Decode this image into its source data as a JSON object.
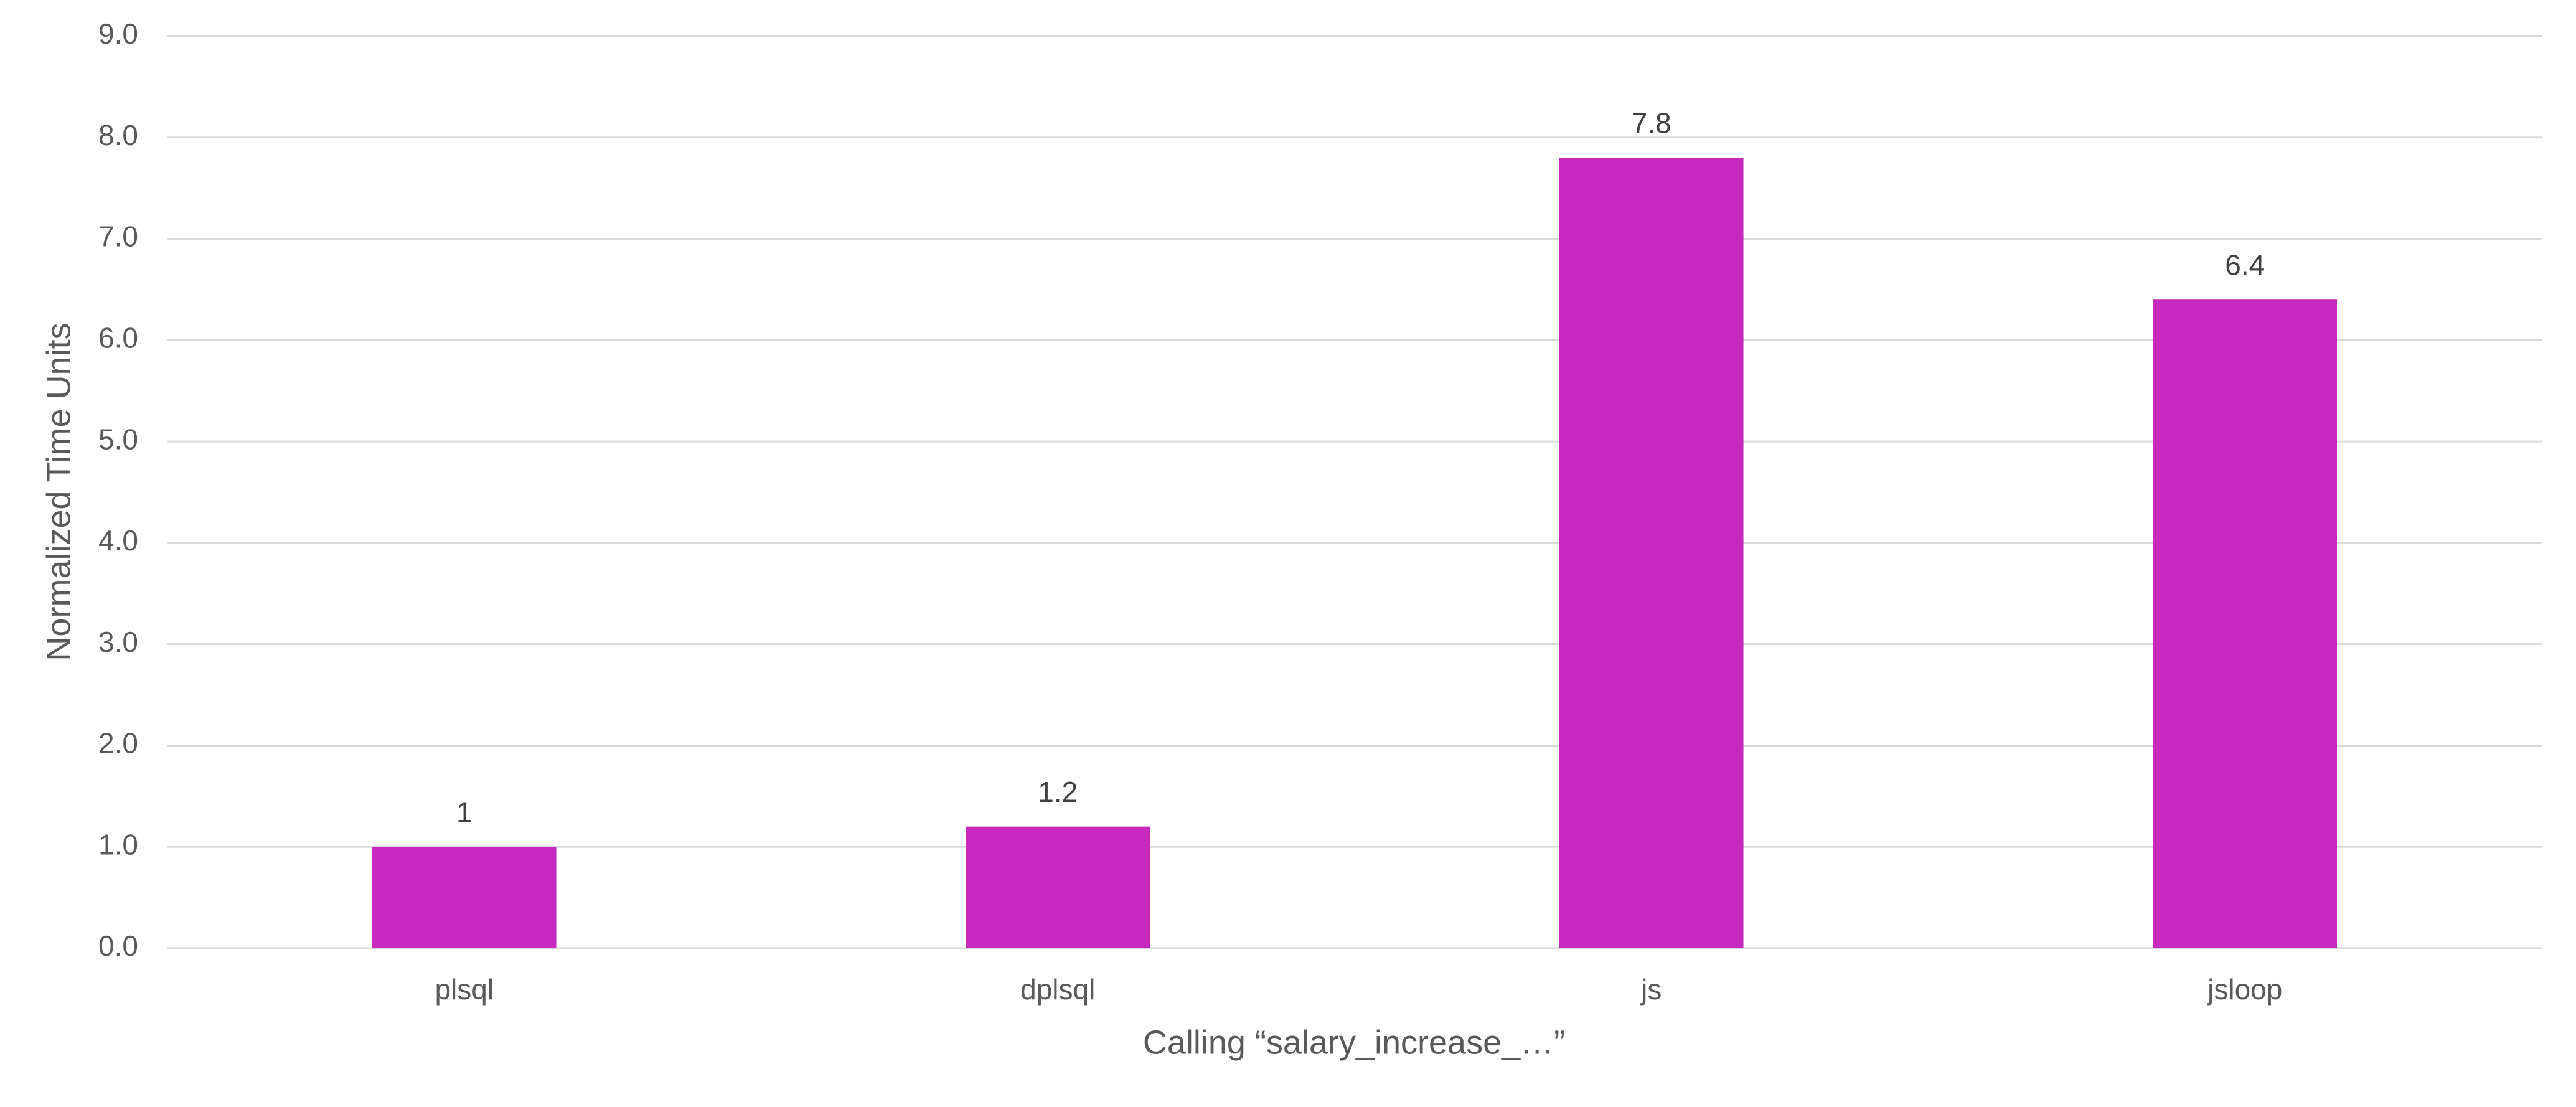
{
  "chart_data": {
    "type": "bar",
    "x_label": "Calling “salary_increase_…”",
    "y_label": "Normalized Time Units",
    "categories": [
      "plsql",
      "dplsql",
      "js",
      "jsloop"
    ],
    "values": [
      1,
      1.2,
      7.8,
      6.4
    ],
    "color": "#c529bd",
    "ylim": [
      0,
      9
    ],
    "yticks": [
      {
        "value": 0,
        "label": "0.0"
      },
      {
        "value": 1,
        "label": "1.0"
      },
      {
        "value": 2,
        "label": "2.0"
      },
      {
        "value": 3,
        "label": "3.0"
      },
      {
        "value": 4,
        "label": "4.0"
      },
      {
        "value": 5,
        "label": "5.0"
      },
      {
        "value": 6,
        "label": "6.0"
      },
      {
        "value": 7,
        "label": "7.0"
      },
      {
        "value": 8,
        "label": "8.0"
      },
      {
        "value": 9,
        "label": "9.0"
      }
    ],
    "grid": true
  }
}
